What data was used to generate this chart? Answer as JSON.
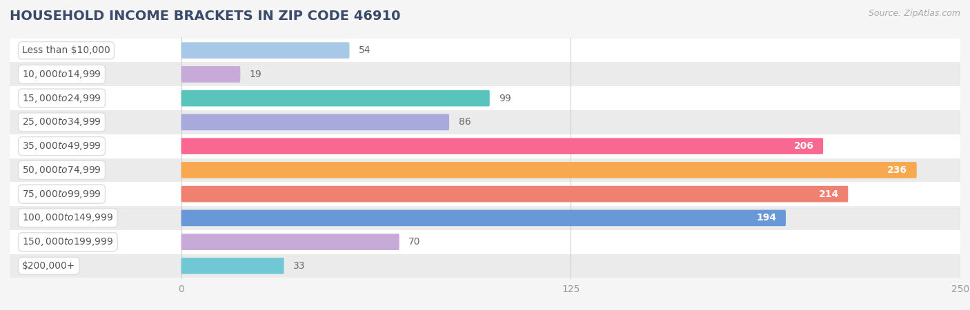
{
  "title": "HOUSEHOLD INCOME BRACKETS IN ZIP CODE 46910",
  "source": "Source: ZipAtlas.com",
  "categories": [
    "Less than $10,000",
    "$10,000 to $14,999",
    "$15,000 to $24,999",
    "$25,000 to $34,999",
    "$35,000 to $49,999",
    "$50,000 to $74,999",
    "$75,000 to $99,999",
    "$100,000 to $149,999",
    "$150,000 to $199,999",
    "$200,000+"
  ],
  "values": [
    54,
    19,
    99,
    86,
    206,
    236,
    214,
    194,
    70,
    33
  ],
  "bar_colors": [
    "#a8c8e8",
    "#c8aad8",
    "#58c4bc",
    "#a8aadc",
    "#f86890",
    "#f8a84e",
    "#f08070",
    "#6898d8",
    "#c8aad8",
    "#70c8d4"
  ],
  "label_inside": [
    false,
    false,
    false,
    false,
    true,
    true,
    true,
    true,
    false,
    false
  ],
  "row_colors": [
    "#ffffff",
    "#ebebeb"
  ],
  "xlim_min": -55,
  "xlim_max": 250,
  "xticks": [
    0,
    125,
    250
  ],
  "background_color": "#f5f5f5",
  "title_color": "#3a4a6b",
  "title_fontsize": 14,
  "source_fontsize": 9,
  "label_fontsize": 10,
  "value_fontsize": 10,
  "tick_fontsize": 10,
  "tick_color": "#999999",
  "grid_color": "#cccccc",
  "value_color_inside": "#ffffff",
  "value_color_outside": "#666666",
  "pill_facecolor": "#ffffff",
  "pill_edgecolor": "#dddddd",
  "pill_text_color": "#555555"
}
